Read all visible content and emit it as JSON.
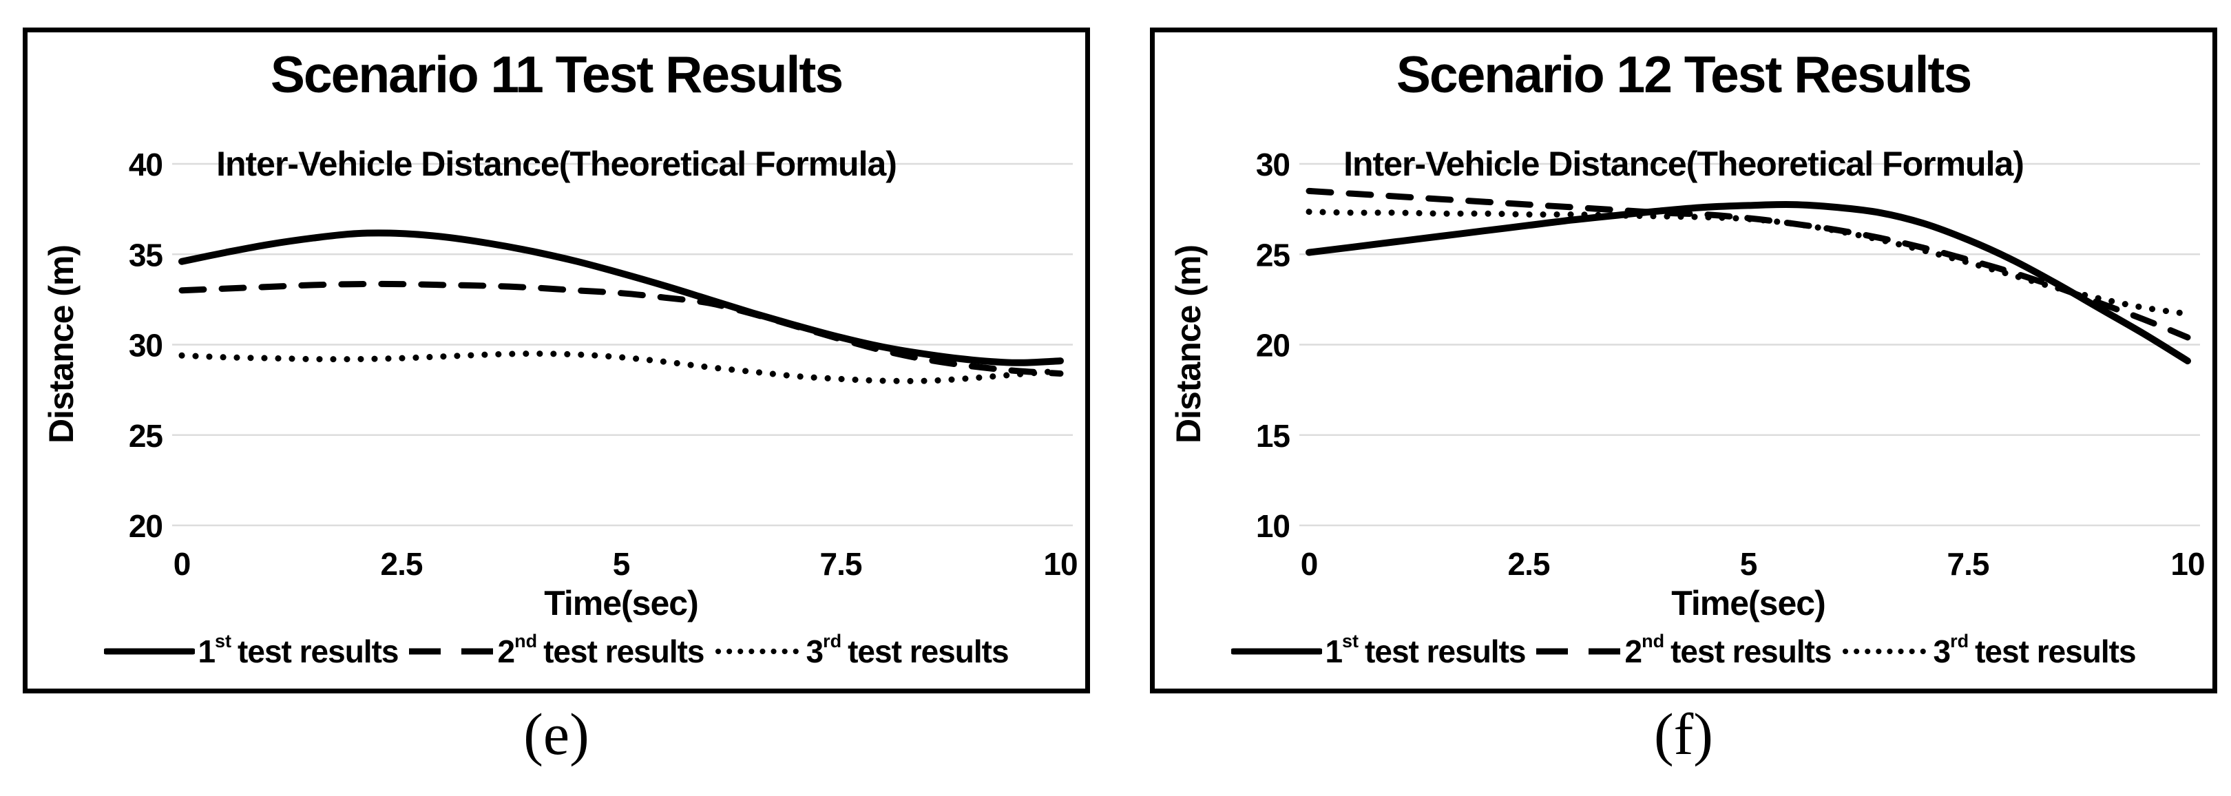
{
  "figure": {
    "captions": {
      "left": "(e)",
      "right": "(f)"
    }
  },
  "legend": {
    "entries": [
      {
        "ordinal": "1",
        "suffix": "st",
        "label": "test results",
        "style": "solid"
      },
      {
        "ordinal": "2",
        "suffix": "nd",
        "label": "test results",
        "style": "dashed"
      },
      {
        "ordinal": "3",
        "suffix": "rd",
        "label": "test results",
        "style": "dotted"
      }
    ]
  },
  "chart_data": [
    {
      "type": "line",
      "title": "Scenario 11 Test Results",
      "subtitle": "Inter-Vehicle Distance(Theoretical Formula)",
      "xlabel": "Time(sec)",
      "ylabel": "Distance (m)",
      "xlim": [
        0,
        10
      ],
      "ylim": [
        20,
        40
      ],
      "xticks": [
        "0",
        "2.5",
        "5",
        "7.5",
        "10"
      ],
      "yticks": [
        "40",
        "35",
        "30",
        "25",
        "20"
      ],
      "grid": "horizontal-only",
      "legend_position": "bottom",
      "line_color": "#000000",
      "x": [
        0,
        0.5,
        1,
        1.5,
        2,
        2.5,
        3,
        3.5,
        4,
        4.5,
        5,
        5.5,
        6,
        6.5,
        7,
        7.5,
        8,
        8.5,
        9,
        9.5,
        10
      ],
      "series": [
        {
          "name": "1st test results",
          "style": "solid",
          "values": [
            34.6,
            35.1,
            35.55,
            35.9,
            36.15,
            36.15,
            35.95,
            35.6,
            35.15,
            34.6,
            33.95,
            33.25,
            32.5,
            31.75,
            31.05,
            30.4,
            29.85,
            29.45,
            29.15,
            29.0,
            29.1
          ]
        },
        {
          "name": "2nd test results",
          "style": "dashed",
          "values": [
            33.0,
            33.1,
            33.2,
            33.3,
            33.35,
            33.35,
            33.3,
            33.25,
            33.15,
            33.0,
            32.85,
            32.6,
            32.3,
            31.7,
            31.0,
            30.3,
            29.65,
            29.15,
            28.8,
            28.55,
            28.4
          ]
        },
        {
          "name": "3rd test results",
          "style": "dotted",
          "values": [
            29.4,
            29.3,
            29.25,
            29.2,
            29.2,
            29.25,
            29.35,
            29.45,
            29.5,
            29.45,
            29.3,
            29.05,
            28.75,
            28.5,
            28.25,
            28.1,
            28.0,
            28.0,
            28.15,
            28.35,
            28.55
          ]
        }
      ]
    },
    {
      "type": "line",
      "title": "Scenario 12 Test Results",
      "subtitle": "Inter-Vehicle Distance(Theoretical Formula)",
      "xlabel": "Time(sec)",
      "ylabel": "Distance (m)",
      "xlim": [
        0,
        10
      ],
      "ylim": [
        10,
        30
      ],
      "xticks": [
        "0",
        "2.5",
        "5",
        "7.5",
        "10"
      ],
      "yticks": [
        "30",
        "25",
        "20",
        "15",
        "10"
      ],
      "grid": "horizontal-only",
      "legend_position": "bottom",
      "line_color": "#000000",
      "x": [
        0,
        0.5,
        1,
        1.5,
        2,
        2.5,
        3,
        3.5,
        4,
        4.5,
        5,
        5.5,
        6,
        6.5,
        7,
        7.5,
        8,
        8.5,
        9,
        9.5,
        10
      ],
      "series": [
        {
          "name": "1st test results",
          "style": "solid",
          "values": [
            25.1,
            25.4,
            25.7,
            26.0,
            26.3,
            26.6,
            26.9,
            27.15,
            27.4,
            27.6,
            27.7,
            27.75,
            27.6,
            27.3,
            26.7,
            25.8,
            24.7,
            23.4,
            22.0,
            20.6,
            19.1
          ]
        },
        {
          "name": "2nd test results",
          "style": "dashed",
          "values": [
            28.5,
            28.35,
            28.2,
            28.05,
            27.9,
            27.75,
            27.6,
            27.45,
            27.3,
            27.2,
            27.0,
            26.7,
            26.35,
            25.9,
            25.35,
            24.7,
            24.0,
            23.2,
            22.3,
            21.4,
            20.4
          ]
        },
        {
          "name": "3rd test results",
          "style": "dotted",
          "values": [
            27.35,
            27.3,
            27.3,
            27.25,
            27.25,
            27.2,
            27.2,
            27.15,
            27.1,
            27.05,
            26.95,
            26.7,
            26.3,
            25.8,
            25.2,
            24.55,
            23.85,
            23.15,
            22.55,
            22.05,
            21.7
          ]
        }
      ]
    }
  ]
}
